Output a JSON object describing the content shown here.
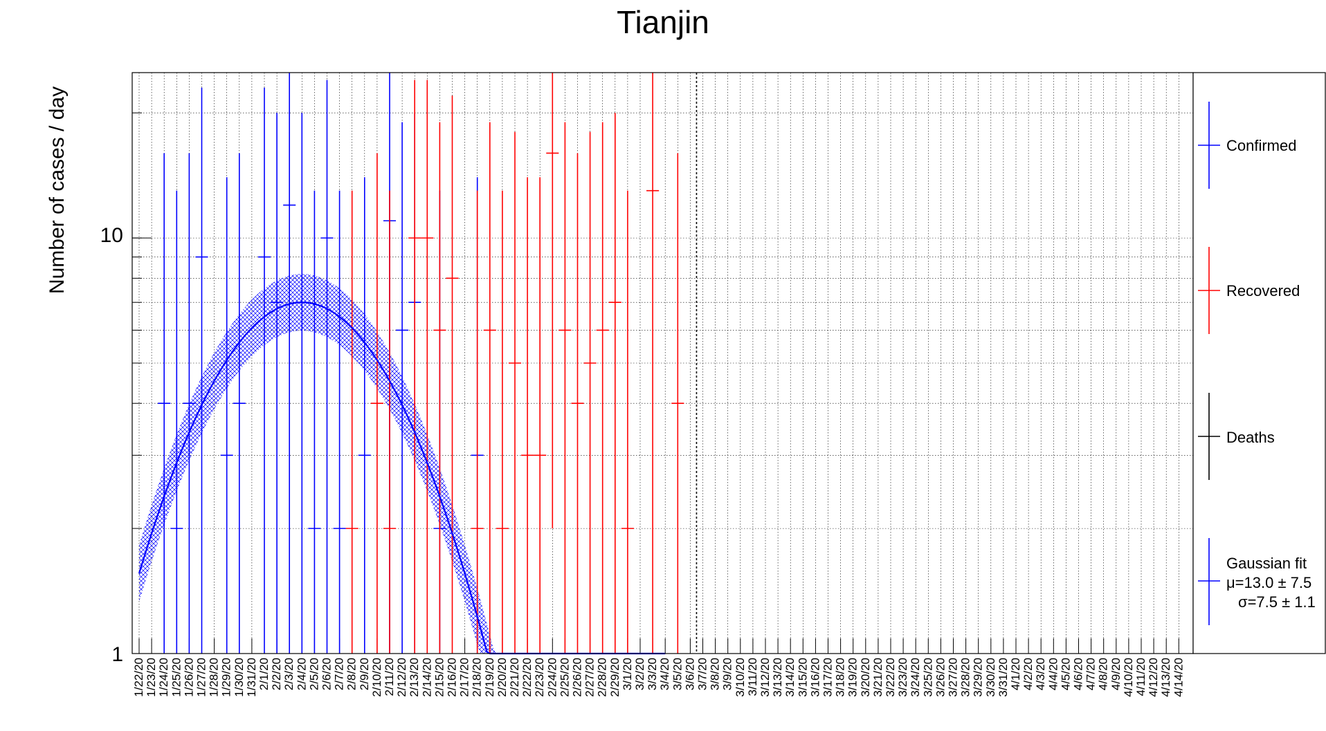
{
  "colors": {
    "confirmed": "#0000ff",
    "recovered": "#ff0000",
    "deaths": "#000000",
    "fit": "#0000ff",
    "grid": "#000000"
  },
  "chart_data": {
    "type": "scatter",
    "title": "Tianjin",
    "xlabel": "",
    "ylabel": "Number of cases / day",
    "yscale": "log",
    "ylim": [
      1,
      25
    ],
    "y_tick_labels": [
      "1",
      "10"
    ],
    "grid": true,
    "legend_position": "right",
    "categories": [
      "1/22/20",
      "1/23/20",
      "1/24/20",
      "1/25/20",
      "1/26/20",
      "1/27/20",
      "1/28/20",
      "1/29/20",
      "1/30/20",
      "1/31/20",
      "2/1/20",
      "2/2/20",
      "2/3/20",
      "2/4/20",
      "2/5/20",
      "2/6/20",
      "2/7/20",
      "2/8/20",
      "2/9/20",
      "2/10/20",
      "2/11/20",
      "2/12/20",
      "2/13/20",
      "2/14/20",
      "2/15/20",
      "2/16/20",
      "2/17/20",
      "2/18/20",
      "2/19/20",
      "2/20/20",
      "2/21/20",
      "2/22/20",
      "2/23/20",
      "2/24/20",
      "2/25/20",
      "2/26/20",
      "2/27/20",
      "2/28/20",
      "2/29/20",
      "3/1/20",
      "3/2/20",
      "3/3/20",
      "3/4/20",
      "3/5/20",
      "3/6/20",
      "3/7/20",
      "3/8/20",
      "3/9/20",
      "3/10/20",
      "3/11/20",
      "3/12/20",
      "3/13/20",
      "3/14/20",
      "3/15/20",
      "3/16/20",
      "3/17/20",
      "3/18/20",
      "3/19/20",
      "3/20/20",
      "3/21/20",
      "3/22/20",
      "3/23/20",
      "3/24/20",
      "3/25/20",
      "3/26/20",
      "3/27/20",
      "3/28/20",
      "3/29/20",
      "3/30/20",
      "3/31/20",
      "4/1/20",
      "4/2/20",
      "4/3/20",
      "4/4/20",
      "4/5/20",
      "4/6/20",
      "4/7/20",
      "4/8/20",
      "4/9/20",
      "4/10/20",
      "4/11/20",
      "4/12/20",
      "4/13/20",
      "4/14/20"
    ],
    "series": [
      {
        "name": "Confirmed",
        "color": "#0000ff",
        "points": [
          {
            "x": "1/24/20",
            "y": 4,
            "low": 1,
            "high": 16
          },
          {
            "x": "1/25/20",
            "y": 2,
            "low": 1,
            "high": 13
          },
          {
            "x": "1/26/20",
            "y": 4,
            "low": 1,
            "high": 16
          },
          {
            "x": "1/27/20",
            "y": 9,
            "low": 1,
            "high": 23
          },
          {
            "x": "1/29/20",
            "y": 3,
            "low": 1,
            "high": 14
          },
          {
            "x": "1/30/20",
            "y": 4,
            "low": 1,
            "high": 16
          },
          {
            "x": "2/1/20",
            "y": 9,
            "low": 1,
            "high": 23
          },
          {
            "x": "2/2/20",
            "y": 7,
            "low": 1,
            "high": 20
          },
          {
            "x": "2/3/20",
            "y": 12,
            "low": 1,
            "high": 25
          },
          {
            "x": "2/4/20",
            "y": 7,
            "low": 1,
            "high": 20
          },
          {
            "x": "2/5/20",
            "y": 2,
            "low": 1,
            "high": 13
          },
          {
            "x": "2/6/20",
            "y": 10,
            "low": 1,
            "high": 24
          },
          {
            "x": "2/7/20",
            "y": 2,
            "low": 1,
            "high": 13
          },
          {
            "x": "2/9/20",
            "y": 3,
            "low": 1,
            "high": 14
          },
          {
            "x": "2/11/20",
            "y": 11,
            "low": 1,
            "high": 25
          },
          {
            "x": "2/12/20",
            "y": 6,
            "low": 1,
            "high": 19
          },
          {
            "x": "2/13/20",
            "y": 7,
            "low": 1,
            "high": 20
          },
          {
            "x": "2/15/20",
            "y": 2,
            "low": 1,
            "high": 13
          },
          {
            "x": "2/18/20",
            "y": 3,
            "low": 1,
            "high": 14
          }
        ]
      },
      {
        "name": "Recovered",
        "color": "#ff0000",
        "points": [
          {
            "x": "2/8/20",
            "y": 2,
            "low": 1,
            "high": 13
          },
          {
            "x": "2/10/20",
            "y": 4,
            "low": 1,
            "high": 16
          },
          {
            "x": "2/11/20",
            "y": 2,
            "low": 1,
            "high": 13
          },
          {
            "x": "2/13/20",
            "y": 10,
            "low": 1,
            "high": 24
          },
          {
            "x": "2/14/20",
            "y": 10,
            "low": 1,
            "high": 24
          },
          {
            "x": "2/15/20",
            "y": 6,
            "low": 1,
            "high": 19
          },
          {
            "x": "2/16/20",
            "y": 8,
            "low": 1,
            "high": 22
          },
          {
            "x": "2/18/20",
            "y": 2,
            "low": 1,
            "high": 13
          },
          {
            "x": "2/19/20",
            "y": 6,
            "low": 1,
            "high": 19
          },
          {
            "x": "2/20/20",
            "y": 2,
            "low": 1,
            "high": 13
          },
          {
            "x": "2/21/20",
            "y": 5,
            "low": 1,
            "high": 18
          },
          {
            "x": "2/22/20",
            "y": 3,
            "low": 1,
            "high": 14
          },
          {
            "x": "2/23/20",
            "y": 3,
            "low": 1,
            "high": 14
          },
          {
            "x": "2/24/20",
            "y": 16,
            "low": 2,
            "high": 25
          },
          {
            "x": "2/25/20",
            "y": 6,
            "low": 1,
            "high": 19
          },
          {
            "x": "2/26/20",
            "y": 4,
            "low": 1,
            "high": 16
          },
          {
            "x": "2/27/20",
            "y": 5,
            "low": 1,
            "high": 18
          },
          {
            "x": "2/28/20",
            "y": 6,
            "low": 1,
            "high": 19
          },
          {
            "x": "2/29/20",
            "y": 7,
            "low": 1,
            "high": 20
          },
          {
            "x": "3/1/20",
            "y": 2,
            "low": 1,
            "high": 13
          },
          {
            "x": "3/3/20",
            "y": 13,
            "low": 1,
            "high": 25
          },
          {
            "x": "3/5/20",
            "y": 4,
            "low": 1,
            "high": 16
          }
        ]
      },
      {
        "name": "Deaths",
        "color": "#000000",
        "points": []
      }
    ],
    "fit": {
      "name": "Gaussian fit",
      "mu_label": "μ=13.0 ± 7.5",
      "sigma_label": "σ=7.5 ± 1.1",
      "amplitude": 7.0,
      "mu": 13.0,
      "sigma": 7.5,
      "x_start": "1/22/20",
      "x_end": "3/4/20",
      "band_factor": 1.17
    },
    "vertical_marker": "3/6/20"
  }
}
